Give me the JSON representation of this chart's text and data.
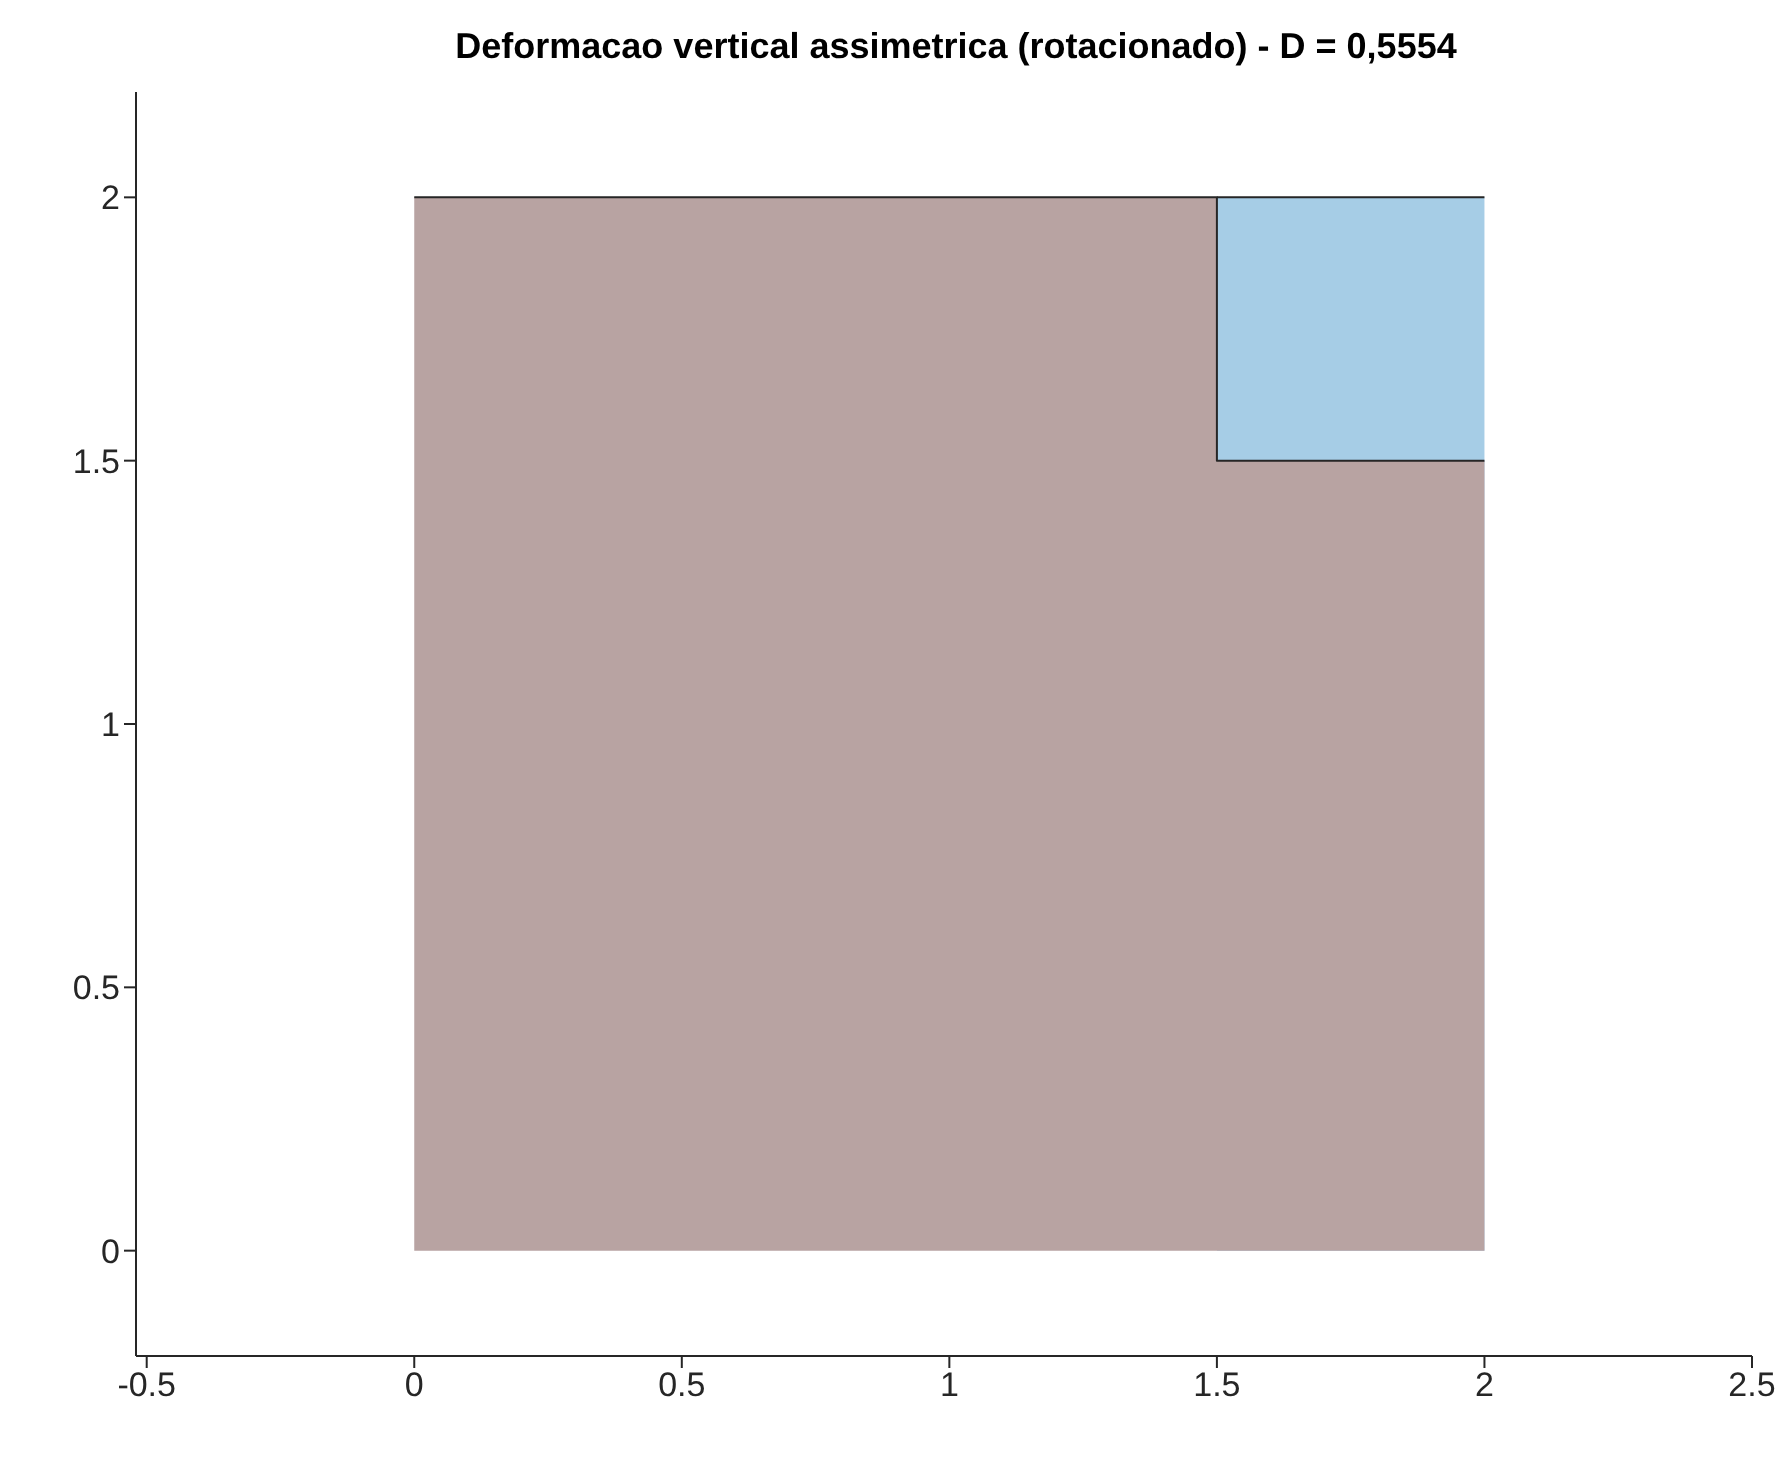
{
  "chart_data": {
    "type": "area",
    "title": "Deformacao vertical assimetrica (rotacionado) - D = 0,5554",
    "xlim": [
      -0.52,
      2.5
    ],
    "xticks": [
      -0.5,
      0,
      0.5,
      1,
      1.5,
      2,
      2.5
    ],
    "ylim": [
      -0.2,
      2.2
    ],
    "yticks": [
      0,
      0.5,
      1,
      1.5,
      2
    ],
    "series": [
      {
        "color": "#a6cde6",
        "x": [
          1.5,
          2
        ],
        "values": [
          2,
          2
        ]
      },
      {
        "color": "#b8a3a2",
        "x": [
          0,
          1.5,
          1.5,
          2
        ],
        "values": [
          2,
          2,
          1.5,
          1.5
        ]
      }
    ]
  }
}
